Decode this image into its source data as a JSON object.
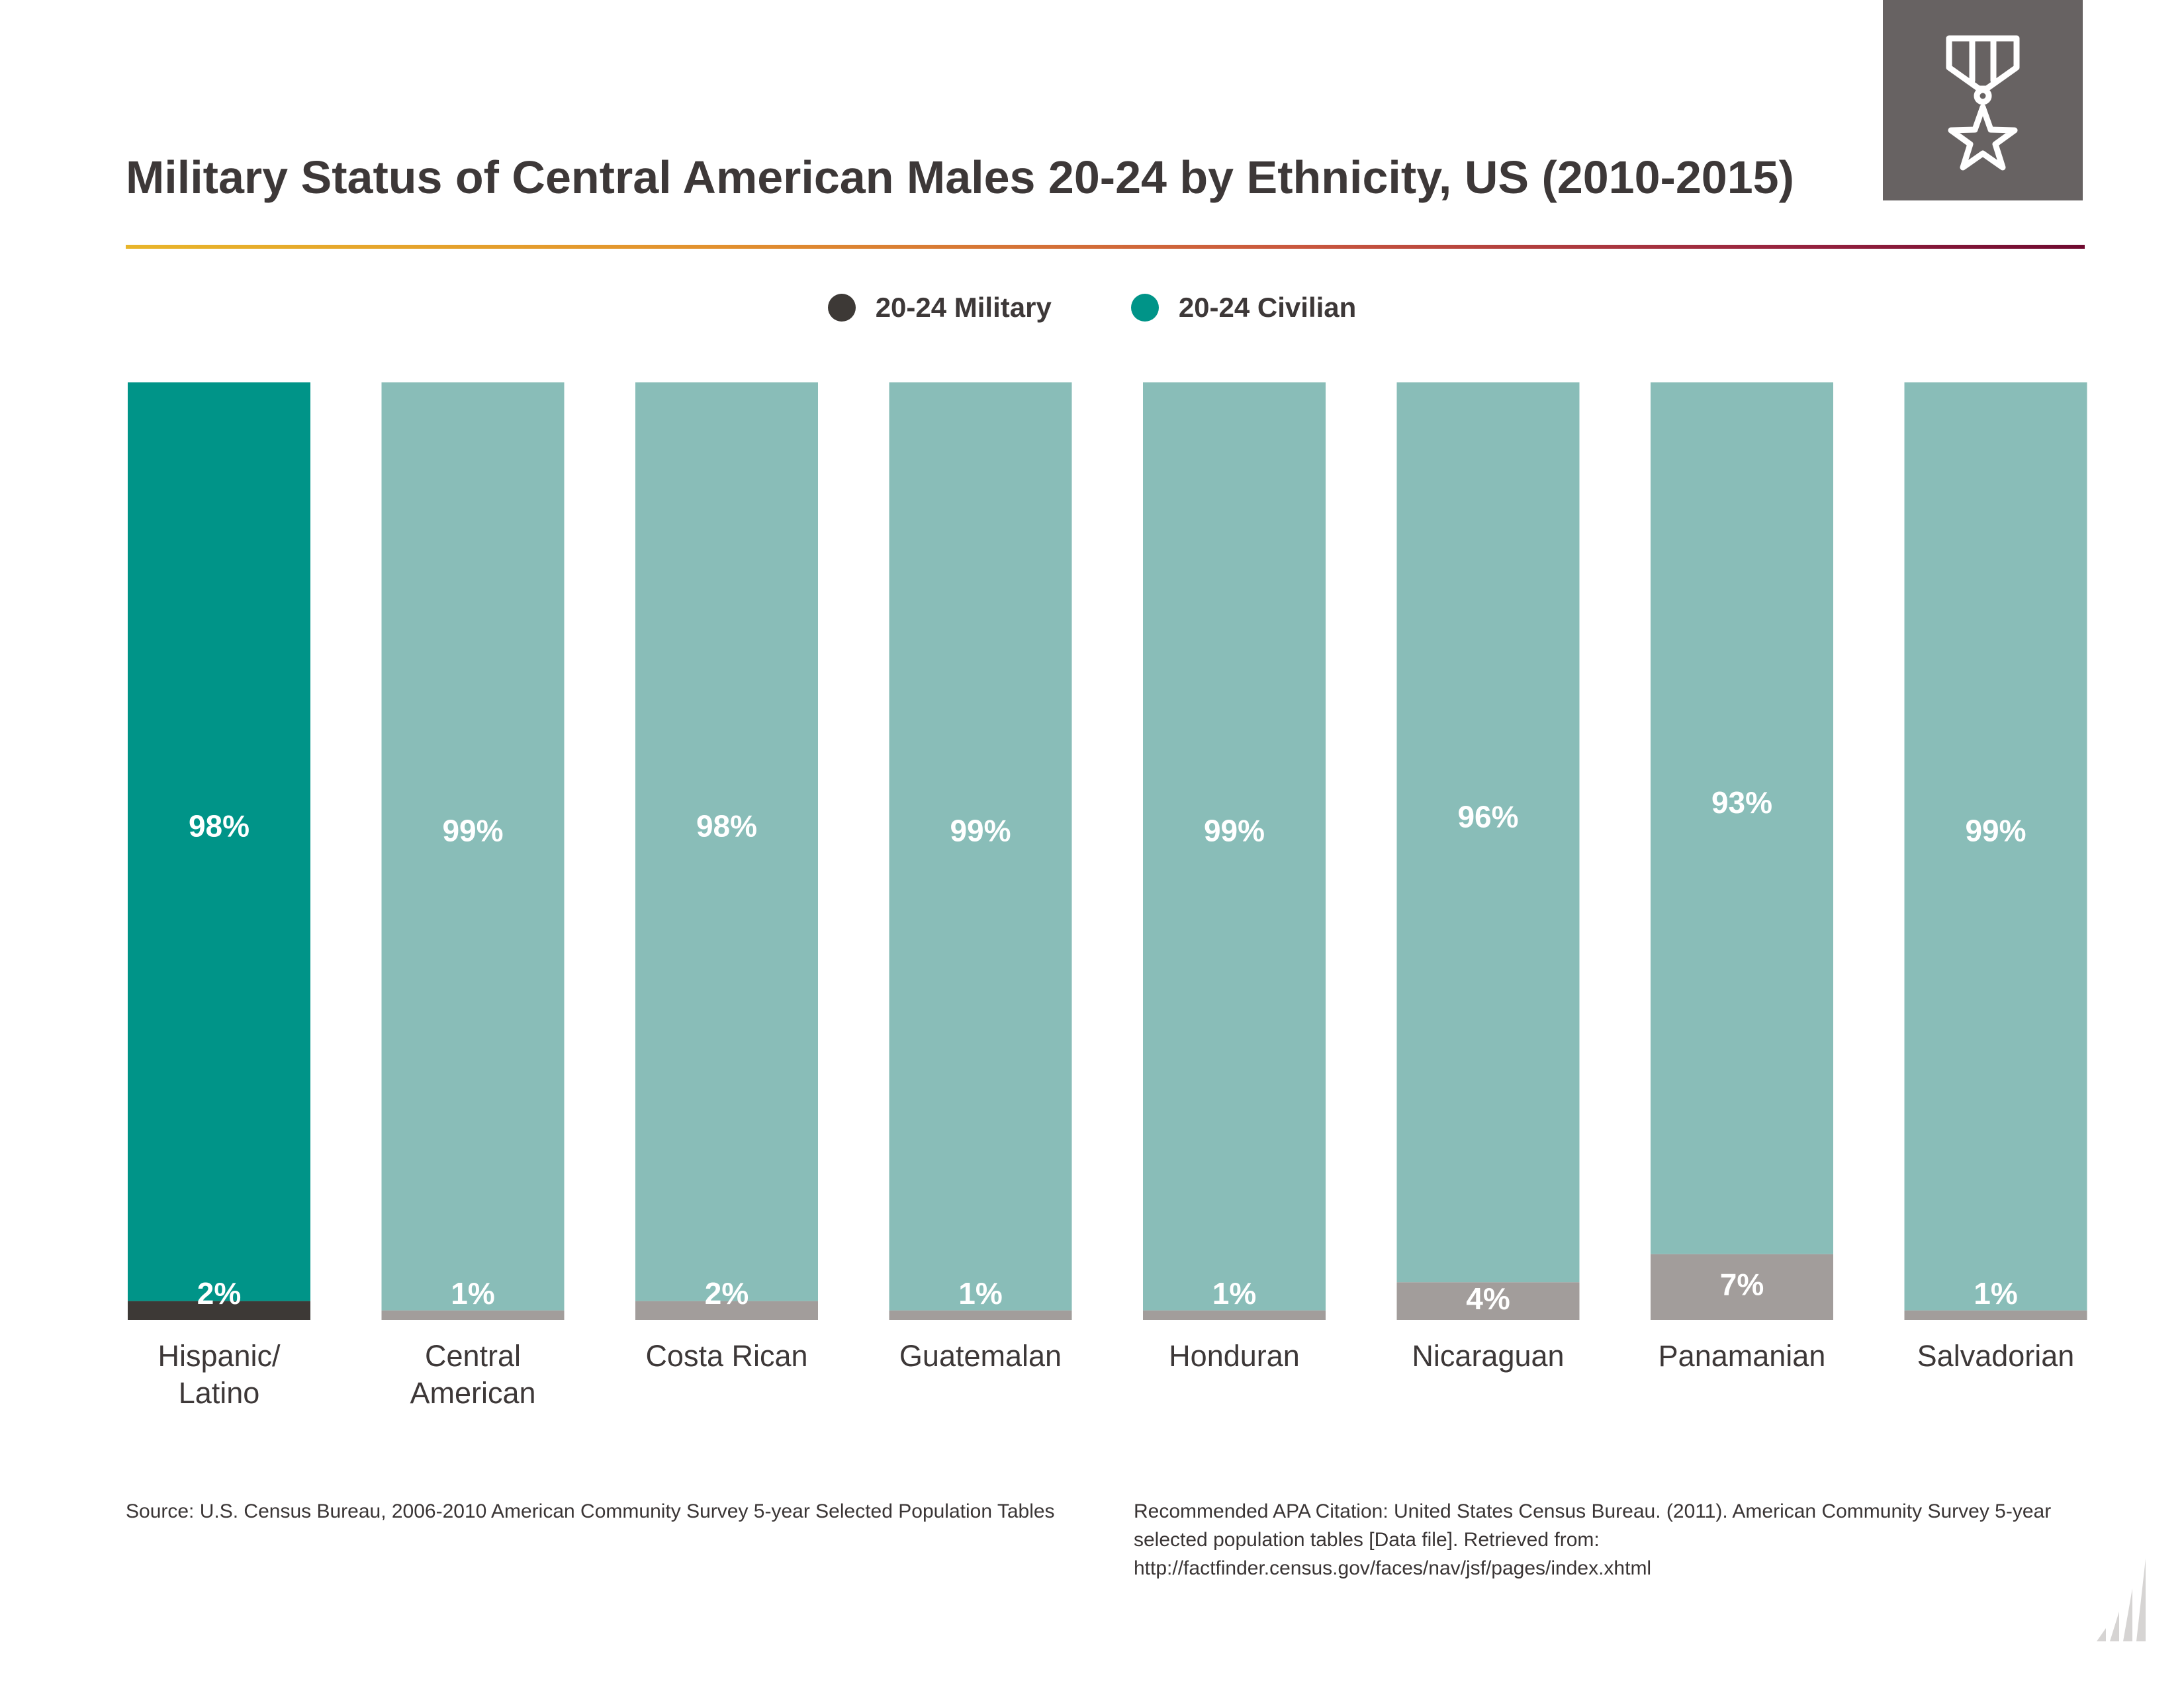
{
  "title": "Military Status of Central American Males 20-24 by Ethnicity, US (2010-2015)",
  "colors": {
    "military_highlight": "#3d3936",
    "military": "#a29d9b",
    "civilian_highlight": "#009488",
    "civilian": "#89bdb8",
    "badge": "#676262"
  },
  "badge_icon": "medal-star-icon",
  "legend": [
    {
      "label": "20-24 Military",
      "color": "#3d3936"
    },
    {
      "label": "20-24 Civilian",
      "color": "#009488"
    }
  ],
  "chart_data": {
    "type": "bar",
    "stacked": true,
    "percent_stacked": true,
    "categories": [
      [
        "Hispanic/",
        "Latino"
      ],
      [
        "Central",
        "American"
      ],
      [
        "Costa Rican"
      ],
      [
        "Guatemalan"
      ],
      [
        "Honduran"
      ],
      [
        "Nicaraguan"
      ],
      [
        "Panamanian"
      ],
      [
        "Salvadorian"
      ]
    ],
    "series": [
      {
        "name": "20-24 Military",
        "values": [
          2,
          1,
          2,
          1,
          1,
          4,
          7,
          1
        ],
        "labels": [
          "2%",
          "1%",
          "2%",
          "1%",
          "1%",
          "4%",
          "7%",
          "1%"
        ]
      },
      {
        "name": "20-24 Civilian",
        "values": [
          98,
          99,
          98,
          99,
          99,
          96,
          93,
          99
        ],
        "labels": [
          "98%",
          "99%",
          "98%",
          "99%",
          "99%",
          "96%",
          "93%",
          "99%"
        ]
      }
    ],
    "highlight_index": 0,
    "ylim": [
      0,
      100
    ],
    "grid": false,
    "legend_position": "top-center"
  },
  "source": "Source:  U.S. Census Bureau, 2006-2010 American Community Survey 5-year Selected Population Tables",
  "citation": "Recommended APA Citation: United States Census Bureau. (2011). American Community Survey 5-year selected population tables [Data file]. Retrieved from: http://factfinder.census.gov/faces/nav/jsf/pages/index.xhtml"
}
